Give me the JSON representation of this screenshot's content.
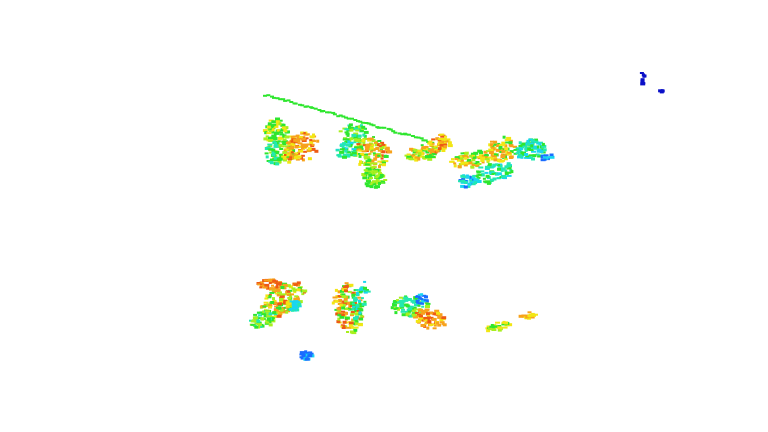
{
  "viewer": {
    "background": "#ffffff",
    "colormap": "jet",
    "colors": {
      "dark_blue": "#0a10c8",
      "blue": "#1a6cff",
      "cyan": "#19d6f0",
      "teal": "#23e8b0",
      "green": "#2ee62e",
      "lime": "#a8ef1e",
      "yellow": "#f2e614",
      "orange": "#f7a21c",
      "red_orange": "#ee5a14"
    },
    "clusters": [
      {
        "name": "upper-row-left-cluster"
      },
      {
        "name": "upper-row-middle-cluster"
      },
      {
        "name": "upper-row-right-cluster"
      },
      {
        "name": "upper-diagonal-green-line"
      },
      {
        "name": "top-right-outlier-points"
      },
      {
        "name": "lower-row-left-cluster"
      },
      {
        "name": "lower-row-middle-cluster"
      },
      {
        "name": "lower-row-center-cluster"
      },
      {
        "name": "lower-row-small-right-clusters"
      },
      {
        "name": "lower-blue-blob"
      }
    ]
  }
}
